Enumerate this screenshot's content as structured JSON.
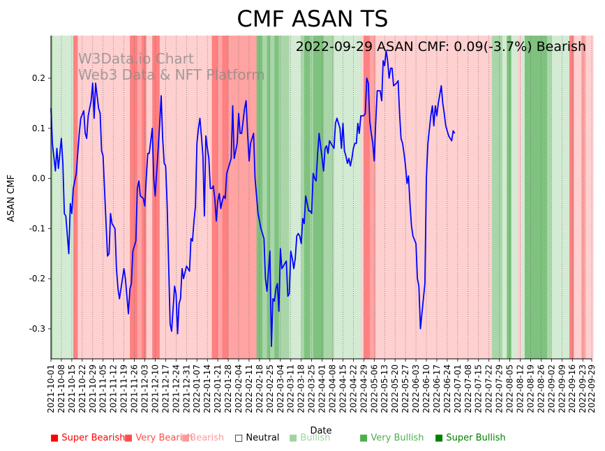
{
  "chart_data": {
    "type": "line",
    "title": "CMF ASAN TS",
    "annotation": "2022-09-29 ASAN CMF: 0.09(-3.7%) Bearish",
    "watermark": [
      "W3Data.io Chart",
      "Web3 Data & NFT Platform"
    ],
    "xlabel": "Date",
    "ylabel": "ASAN CMF",
    "ylim": [
      -0.36,
      0.285
    ],
    "yticks": [
      -0.3,
      -0.2,
      -0.1,
      0.0,
      0.1,
      0.2
    ],
    "x_start": "2021-10-01",
    "x_end": "2022-09-29",
    "xtick_labels": [
      "2021-10-01",
      "2021-10-08",
      "2021-10-15",
      "2021-10-22",
      "2021-10-29",
      "2021-11-05",
      "2021-11-12",
      "2021-11-19",
      "2021-11-26",
      "2021-12-03",
      "2021-12-10",
      "2021-12-17",
      "2021-12-24",
      "2021-12-31",
      "2022-01-07",
      "2022-01-14",
      "2022-01-21",
      "2022-01-28",
      "2022-02-04",
      "2022-02-11",
      "2022-02-18",
      "2022-02-25",
      "2022-03-04",
      "2022-03-11",
      "2022-03-18",
      "2022-03-25",
      "2022-04-01",
      "2022-04-08",
      "2022-04-15",
      "2022-04-22",
      "2022-04-29",
      "2022-05-06",
      "2022-05-13",
      "2022-05-20",
      "2022-05-27",
      "2022-06-03",
      "2022-06-10",
      "2022-06-17",
      "2022-06-24",
      "2022-07-01",
      "2022-07-08",
      "2022-07-15",
      "2022-07-22",
      "2022-07-29",
      "2022-08-05",
      "2022-08-12",
      "2022-08-19",
      "2022-08-26",
      "2022-09-02",
      "2022-09-09",
      "2022-09-16",
      "2022-09-23",
      "2022-09-29"
    ],
    "series": [
      {
        "name": "ASAN CMF",
        "color": "#0000ff",
        "points": [
          [
            "2021-10-01",
            0.14
          ],
          [
            "2021-10-02",
            0.07
          ],
          [
            "2021-10-04",
            0.015
          ],
          [
            "2021-10-05",
            0.06
          ],
          [
            "2021-10-06",
            0.02
          ],
          [
            "2021-10-08",
            0.08
          ],
          [
            "2021-10-09",
            0.03
          ],
          [
            "2021-10-10",
            -0.07
          ],
          [
            "2021-10-11",
            -0.075
          ],
          [
            "2021-10-13",
            -0.15
          ],
          [
            "2021-10-14",
            -0.05
          ],
          [
            "2021-10-15",
            -0.07
          ],
          [
            "2021-10-16",
            -0.02
          ],
          [
            "2021-10-18",
            0.01
          ],
          [
            "2021-10-19",
            0.05
          ],
          [
            "2021-10-20",
            0.09
          ],
          [
            "2021-10-21",
            0.12
          ],
          [
            "2021-10-23",
            0.135
          ],
          [
            "2021-10-24",
            0.09
          ],
          [
            "2021-10-25",
            0.08
          ],
          [
            "2021-10-26",
            0.125
          ],
          [
            "2021-10-28",
            0.155
          ],
          [
            "2021-10-29",
            0.19
          ],
          [
            "2021-10-30",
            0.12
          ],
          [
            "2021-10-31",
            0.19
          ],
          [
            "2021-11-02",
            0.14
          ],
          [
            "2021-11-03",
            0.13
          ],
          [
            "2021-11-04",
            0.055
          ],
          [
            "2021-11-05",
            0.045
          ],
          [
            "2021-11-06",
            -0.025
          ],
          [
            "2021-11-08",
            -0.155
          ],
          [
            "2021-11-09",
            -0.15
          ],
          [
            "2021-11-10",
            -0.07
          ],
          [
            "2021-11-11",
            -0.09
          ],
          [
            "2021-11-13",
            -0.1
          ],
          [
            "2021-11-14",
            -0.18
          ],
          [
            "2021-11-15",
            -0.22
          ],
          [
            "2021-11-16",
            -0.24
          ],
          [
            "2021-11-18",
            -0.2
          ],
          [
            "2021-11-19",
            -0.18
          ],
          [
            "2021-11-20",
            -0.2
          ],
          [
            "2021-11-22",
            -0.27
          ],
          [
            "2021-11-23",
            -0.22
          ],
          [
            "2021-11-24",
            -0.21
          ],
          [
            "2021-11-25",
            -0.145
          ],
          [
            "2021-11-27",
            -0.125
          ],
          [
            "2021-11-28",
            -0.02
          ],
          [
            "2021-11-29",
            -0.005
          ],
          [
            "2021-11-30",
            -0.035
          ],
          [
            "2021-12-02",
            -0.04
          ],
          [
            "2021-12-03",
            -0.055
          ],
          [
            "2021-12-04",
            0.0
          ],
          [
            "2021-12-05",
            0.05
          ],
          [
            "2021-12-06",
            0.05
          ],
          [
            "2021-12-08",
            0.1
          ],
          [
            "2021-12-09",
            0.0
          ],
          [
            "2021-12-10",
            -0.035
          ],
          [
            "2021-12-12",
            0.06
          ],
          [
            "2021-12-13",
            0.11
          ],
          [
            "2021-12-14",
            0.165
          ],
          [
            "2021-12-15",
            0.08
          ],
          [
            "2021-12-16",
            0.03
          ],
          [
            "2021-12-17",
            0.025
          ],
          [
            "2021-12-18",
            -0.05
          ],
          [
            "2021-12-20",
            -0.29
          ],
          [
            "2021-12-21",
            -0.305
          ],
          [
            "2021-12-23",
            -0.215
          ],
          [
            "2021-12-24",
            -0.23
          ],
          [
            "2021-12-25",
            -0.31
          ],
          [
            "2021-12-26",
            -0.25
          ],
          [
            "2021-12-27",
            -0.24
          ],
          [
            "2021-12-28",
            -0.18
          ],
          [
            "2021-12-29",
            -0.2
          ],
          [
            "2021-12-31",
            -0.175
          ],
          [
            "2022-01-02",
            -0.185
          ],
          [
            "2022-01-03",
            -0.12
          ],
          [
            "2022-01-04",
            -0.125
          ],
          [
            "2022-01-05",
            -0.085
          ],
          [
            "2022-01-06",
            -0.055
          ],
          [
            "2022-01-07",
            0.07
          ],
          [
            "2022-01-08",
            0.1
          ],
          [
            "2022-01-09",
            0.12
          ],
          [
            "2022-01-10",
            0.085
          ],
          [
            "2022-01-11",
            0.045
          ],
          [
            "2022-01-12",
            -0.075
          ],
          [
            "2022-01-13",
            0.085
          ],
          [
            "2022-01-14",
            0.06
          ],
          [
            "2022-01-15",
            0.04
          ],
          [
            "2022-01-16",
            -0.02
          ],
          [
            "2022-01-17",
            -0.02
          ],
          [
            "2022-01-18",
            -0.015
          ],
          [
            "2022-01-19",
            -0.04
          ],
          [
            "2022-01-20",
            -0.085
          ],
          [
            "2022-01-21",
            -0.045
          ],
          [
            "2022-01-22",
            -0.03
          ],
          [
            "2022-01-23",
            -0.06
          ],
          [
            "2022-01-24",
            -0.045
          ],
          [
            "2022-01-25",
            -0.035
          ],
          [
            "2022-01-26",
            -0.04
          ],
          [
            "2022-01-27",
            0.01
          ],
          [
            "2022-01-28",
            0.02
          ],
          [
            "2022-01-29",
            0.03
          ],
          [
            "2022-01-30",
            0.04
          ],
          [
            "2022-01-31",
            0.145
          ],
          [
            "2022-02-01",
            0.04
          ],
          [
            "2022-02-03",
            0.07
          ],
          [
            "2022-02-04",
            0.13
          ],
          [
            "2022-02-05",
            0.09
          ],
          [
            "2022-02-06",
            0.09
          ],
          [
            "2022-02-08",
            0.14
          ],
          [
            "2022-02-09",
            0.155
          ],
          [
            "2022-02-10",
            0.09
          ],
          [
            "2022-02-11",
            0.035
          ],
          [
            "2022-02-12",
            0.07
          ],
          [
            "2022-02-14",
            0.09
          ],
          [
            "2022-02-15",
            0.0
          ],
          [
            "2022-02-17",
            -0.07
          ],
          [
            "2022-02-19",
            -0.1
          ],
          [
            "2022-02-21",
            -0.12
          ],
          [
            "2022-02-22",
            -0.2
          ],
          [
            "2022-02-23",
            -0.225
          ],
          [
            "2022-02-24",
            -0.185
          ],
          [
            "2022-02-25",
            -0.145
          ],
          [
            "2022-02-26",
            -0.335
          ],
          [
            "2022-02-27",
            -0.24
          ],
          [
            "2022-02-28",
            -0.245
          ],
          [
            "2022-03-01",
            -0.22
          ],
          [
            "2022-03-02",
            -0.21
          ],
          [
            "2022-03-03",
            -0.265
          ],
          [
            "2022-03-04",
            -0.14
          ],
          [
            "2022-03-05",
            -0.18
          ],
          [
            "2022-03-07",
            -0.17
          ],
          [
            "2022-03-08",
            -0.165
          ],
          [
            "2022-03-09",
            -0.235
          ],
          [
            "2022-03-10",
            -0.23
          ],
          [
            "2022-03-11",
            -0.145
          ],
          [
            "2022-03-12",
            -0.16
          ],
          [
            "2022-03-13",
            -0.18
          ],
          [
            "2022-03-14",
            -0.16
          ],
          [
            "2022-03-15",
            -0.115
          ],
          [
            "2022-03-16",
            -0.11
          ],
          [
            "2022-03-17",
            -0.115
          ],
          [
            "2022-03-18",
            -0.13
          ],
          [
            "2022-03-19",
            -0.08
          ],
          [
            "2022-03-20",
            -0.09
          ],
          [
            "2022-03-21",
            -0.035
          ],
          [
            "2022-03-23",
            -0.065
          ],
          [
            "2022-03-24",
            -0.065
          ],
          [
            "2022-03-25",
            -0.07
          ],
          [
            "2022-03-26",
            0.01
          ],
          [
            "2022-03-27",
            0.0
          ],
          [
            "2022-03-28",
            -0.005
          ],
          [
            "2022-03-29",
            0.05
          ],
          [
            "2022-03-30",
            0.09
          ],
          [
            "2022-03-31",
            0.065
          ],
          [
            "2022-04-01",
            0.04
          ],
          [
            "2022-04-02",
            0.015
          ],
          [
            "2022-04-03",
            0.06
          ],
          [
            "2022-04-04",
            0.065
          ],
          [
            "2022-04-05",
            0.05
          ],
          [
            "2022-04-06",
            0.075
          ],
          [
            "2022-04-08",
            0.065
          ],
          [
            "2022-04-09",
            0.06
          ],
          [
            "2022-04-10",
            0.11
          ],
          [
            "2022-04-11",
            0.12
          ],
          [
            "2022-04-13",
            0.1
          ],
          [
            "2022-04-14",
            0.06
          ],
          [
            "2022-04-15",
            0.11
          ],
          [
            "2022-04-16",
            0.055
          ],
          [
            "2022-04-17",
            0.045
          ],
          [
            "2022-04-18",
            0.03
          ],
          [
            "2022-04-19",
            0.04
          ],
          [
            "2022-04-20",
            0.025
          ],
          [
            "2022-04-21",
            0.04
          ],
          [
            "2022-04-22",
            0.06
          ],
          [
            "2022-04-23",
            0.07
          ],
          [
            "2022-04-24",
            0.07
          ],
          [
            "2022-04-25",
            0.11
          ],
          [
            "2022-04-26",
            0.09
          ],
          [
            "2022-04-27",
            0.125
          ],
          [
            "2022-04-29",
            0.125
          ],
          [
            "2022-04-30",
            0.13
          ],
          [
            "2022-05-01",
            0.2
          ],
          [
            "2022-05-02",
            0.19
          ],
          [
            "2022-05-03",
            0.115
          ],
          [
            "2022-05-04",
            0.09
          ],
          [
            "2022-05-05",
            0.07
          ],
          [
            "2022-05-06",
            0.035
          ],
          [
            "2022-05-07",
            0.11
          ],
          [
            "2022-05-08",
            0.175
          ],
          [
            "2022-05-10",
            0.175
          ],
          [
            "2022-05-11",
            0.155
          ],
          [
            "2022-05-12",
            0.235
          ],
          [
            "2022-05-13",
            0.225
          ],
          [
            "2022-05-14",
            0.255
          ],
          [
            "2022-05-15",
            0.235
          ],
          [
            "2022-05-16",
            0.2
          ],
          [
            "2022-05-17",
            0.22
          ],
          [
            "2022-05-18",
            0.22
          ],
          [
            "2022-05-19",
            0.185
          ],
          [
            "2022-05-21",
            0.19
          ],
          [
            "2022-05-22",
            0.195
          ],
          [
            "2022-05-23",
            0.13
          ],
          [
            "2022-05-24",
            0.08
          ],
          [
            "2022-05-25",
            0.07
          ],
          [
            "2022-05-26",
            0.05
          ],
          [
            "2022-05-27",
            0.025
          ],
          [
            "2022-05-28",
            -0.01
          ],
          [
            "2022-05-29",
            0.005
          ],
          [
            "2022-05-30",
            -0.05
          ],
          [
            "2022-05-31",
            -0.095
          ],
          [
            "2022-06-01",
            -0.115
          ],
          [
            "2022-06-03",
            -0.13
          ],
          [
            "2022-06-04",
            -0.2
          ],
          [
            "2022-06-05",
            -0.215
          ],
          [
            "2022-06-06",
            -0.3
          ],
          [
            "2022-06-07",
            -0.27
          ],
          [
            "2022-06-09",
            -0.21
          ],
          [
            "2022-06-10",
            0.0
          ],
          [
            "2022-06-11",
            0.07
          ],
          [
            "2022-06-13",
            0.125
          ],
          [
            "2022-06-14",
            0.145
          ],
          [
            "2022-06-15",
            0.105
          ],
          [
            "2022-06-16",
            0.145
          ],
          [
            "2022-06-17",
            0.125
          ],
          [
            "2022-06-18",
            0.15
          ],
          [
            "2022-06-20",
            0.185
          ],
          [
            "2022-06-21",
            0.15
          ],
          [
            "2022-06-22",
            0.13
          ],
          [
            "2022-06-23",
            0.105
          ],
          [
            "2022-06-25",
            0.085
          ],
          [
            "2022-06-27",
            0.075
          ],
          [
            "2022-06-28",
            0.095
          ],
          [
            "2022-06-29",
            0.09
          ]
        ]
      }
    ],
    "regime_bands": [
      [
        "2021-10-01",
        "2021-10-01.5",
        "very_bullish"
      ],
      [
        "2021-10-01.5",
        "2021-10-15",
        "bullish"
      ],
      [
        "2021-10-15",
        "2021-10-18",
        "very_bearish"
      ],
      [
        "2021-10-18",
        "2021-11-05",
        "bearish"
      ]
    ],
    "legend": {
      "position": "bottom",
      "items": [
        {
          "label": "Super Bearish",
          "color": "#ff0000"
        },
        {
          "label": "Very Bearish",
          "color": "#ff4c4c"
        },
        {
          "label": "Bearish",
          "color": "#ff9999"
        },
        {
          "label": "Neutral",
          "color": "#000000"
        },
        {
          "label": "Bullish",
          "color": "#a3d3a3"
        },
        {
          "label": "Very Bullish",
          "color": "#4caf4c"
        },
        {
          "label": "Super Bullish",
          "color": "#008000"
        }
      ]
    },
    "regime_colors": {
      "bearish": "#ffd0d0",
      "very_bearish": "#ff8080",
      "bearish_mid": "#ffa0a0",
      "bullish": "#d3ebd3",
      "bullish_mid": "#a8d5a8",
      "very_bullish": "#7cc07c"
    }
  }
}
